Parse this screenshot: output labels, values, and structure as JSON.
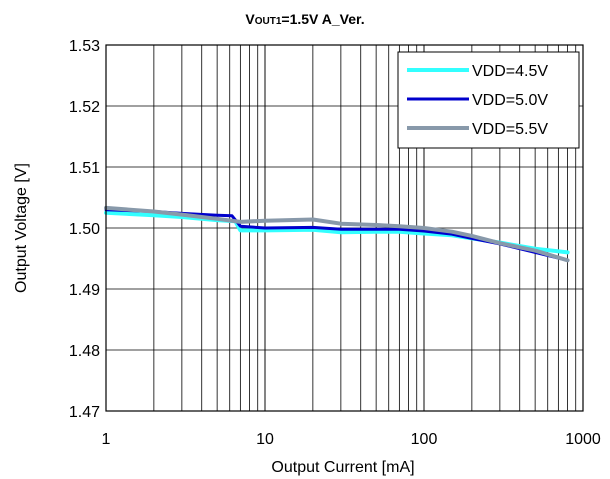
{
  "chart_data": {
    "type": "line",
    "title": {
      "main": "V",
      "sub": "OUT1",
      "rest": "=1.5V  A_Ver."
    },
    "xlabel": "Output Current [mA]",
    "ylabel": "Output Voltage  [V]",
    "x_scale": "log",
    "xlim": [
      1,
      1000
    ],
    "ylim": [
      1.47,
      1.53
    ],
    "x_ticks": [
      "1",
      "10",
      "100",
      "1000"
    ],
    "y_ticks": [
      "1.53",
      "1.52",
      "1.51",
      "1.50",
      "1.49",
      "1.48",
      "1.47"
    ],
    "grid": true,
    "legend_position": "top-right",
    "series": [
      {
        "name": "VDD=4.5V",
        "color": "#33ffff",
        "x": [
          1,
          2,
          3,
          5,
          6.5,
          7,
          10,
          20,
          30,
          50,
          70,
          100,
          150,
          200,
          300,
          500,
          800
        ],
        "y": [
          1.5025,
          1.5021,
          1.5018,
          1.5013,
          1.5011,
          1.4996,
          1.4996,
          1.4997,
          1.4993,
          1.4994,
          1.4994,
          1.4991,
          1.4988,
          1.4983,
          1.4976,
          1.4966,
          1.496
        ]
      },
      {
        "name": "VDD=5.0V",
        "color": "#0000cc",
        "x": [
          1,
          2,
          3,
          5,
          6.2,
          7,
          10,
          20,
          30,
          50,
          70,
          100,
          150,
          200,
          300,
          500,
          800
        ],
        "y": [
          1.503,
          1.5027,
          1.5024,
          1.5021,
          1.502,
          1.5003,
          1.5,
          1.5001,
          1.4998,
          1.4998,
          1.4998,
          1.4995,
          1.499,
          1.4983,
          1.4974,
          1.496,
          1.4947
        ]
      },
      {
        "name": "VDD=5.5V",
        "color": "#8899aa",
        "x": [
          1,
          2,
          3,
          5,
          7,
          10,
          20,
          30,
          50,
          70,
          100,
          150,
          200,
          300,
          500,
          800
        ],
        "y": [
          1.5033,
          1.5027,
          1.5022,
          1.5015,
          1.501,
          1.5012,
          1.5014,
          1.5007,
          1.5005,
          1.5003,
          1.5,
          1.4994,
          1.4987,
          1.4975,
          1.4963,
          1.4947
        ]
      }
    ]
  }
}
